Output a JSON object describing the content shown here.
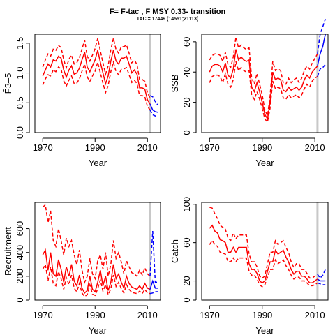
{
  "title": "F= F-tac , F MSY 0.33- transition",
  "subtitle": "TAC = 17449 (14551;21113)",
  "colors": {
    "hist": "#ff0000",
    "proj": "#0000ff",
    "vline": "#c8c8c8",
    "axis": "#000000"
  },
  "chart_data": [
    {
      "type": "line",
      "xlabel": "Year",
      "ylabel": "F̄3–5",
      "xlim": [
        1967,
        2015
      ],
      "ylim": [
        0,
        1.65
      ],
      "xticks": [
        1970,
        1990,
        2010
      ],
      "yticks": [
        0.0,
        0.5,
        1.0,
        1.5
      ],
      "ytick_labels": [
        "0.0",
        "0.5",
        "1.0",
        "1.5"
      ],
      "vline_x": 2011,
      "historical": {
        "x": [
          1970,
          1971,
          1972,
          1973,
          1974,
          1975,
          1976,
          1977,
          1978,
          1979,
          1980,
          1981,
          1982,
          1983,
          1984,
          1985,
          1986,
          1987,
          1988,
          1989,
          1990,
          1991,
          1992,
          1993,
          1994,
          1995,
          1996,
          1997,
          1998,
          1999,
          2000,
          2001,
          2002,
          2003,
          2004,
          2005,
          2006,
          2007,
          2008,
          2009,
          2010,
          2011
        ],
        "median": [
          0.95,
          1.05,
          1.15,
          1.1,
          1.22,
          1.2,
          1.28,
          1.25,
          1.05,
          0.93,
          1.05,
          1.12,
          0.98,
          1.0,
          1.08,
          1.22,
          1.35,
          1.1,
          1.02,
          1.12,
          1.22,
          1.38,
          1.18,
          1.0,
          0.82,
          0.95,
          1.2,
          1.38,
          1.2,
          1.15,
          1.25,
          1.25,
          1.28,
          1.15,
          1.0,
          1.05,
          0.98,
          0.75,
          0.75,
          0.73,
          0.55,
          0.48
        ],
        "lower": [
          0.8,
          0.9,
          0.97,
          0.95,
          1.05,
          1.02,
          1.1,
          1.07,
          0.87,
          0.78,
          0.88,
          0.95,
          0.82,
          0.83,
          0.9,
          1.03,
          1.15,
          0.93,
          0.86,
          0.95,
          1.03,
          1.18,
          1.0,
          0.83,
          0.67,
          0.79,
          1.02,
          1.18,
          1.02,
          0.97,
          1.06,
          1.07,
          1.09,
          0.97,
          0.84,
          0.88,
          0.82,
          0.62,
          0.62,
          0.6,
          0.44,
          0.38
        ],
        "upper": [
          1.1,
          1.22,
          1.32,
          1.28,
          1.4,
          1.38,
          1.46,
          1.43,
          1.22,
          1.09,
          1.23,
          1.3,
          1.15,
          1.17,
          1.26,
          1.4,
          1.55,
          1.28,
          1.2,
          1.3,
          1.41,
          1.58,
          1.37,
          1.17,
          0.98,
          1.12,
          1.39,
          1.58,
          1.39,
          1.33,
          1.44,
          1.44,
          1.47,
          1.33,
          1.17,
          1.22,
          1.14,
          0.89,
          0.89,
          0.86,
          0.67,
          0.58
        ]
      },
      "projection": {
        "x": [
          2011,
          2012,
          2013,
          2014
        ],
        "median": [
          0.48,
          0.38,
          0.35,
          0.34
        ],
        "lower": [
          0.38,
          0.3,
          0.28,
          0.27
        ],
        "upper": [
          0.62,
          0.6,
          0.52,
          0.46
        ]
      }
    },
    {
      "type": "line",
      "xlabel": "Year",
      "ylabel": "SSB",
      "xlim": [
        1967,
        2015
      ],
      "ylim": [
        0,
        65
      ],
      "xticks": [
        1970,
        1990,
        2010
      ],
      "yticks": [
        0,
        20,
        40,
        60
      ],
      "ytick_labels": [
        "0",
        "20",
        "40",
        "60"
      ],
      "vline_x": 2011,
      "historical": {
        "x": [
          1970,
          1971,
          1972,
          1973,
          1974,
          1975,
          1976,
          1977,
          1978,
          1979,
          1980,
          1981,
          1982,
          1983,
          1984,
          1985,
          1986,
          1987,
          1988,
          1989,
          1990,
          1991,
          1992,
          1993,
          1994,
          1995,
          1996,
          1997,
          1998,
          1999,
          2000,
          2001,
          2002,
          2003,
          2004,
          2005,
          2006,
          2007,
          2008,
          2009,
          2010,
          2011
        ],
        "median": [
          40,
          44,
          45,
          45,
          44,
          40,
          46,
          38,
          36,
          42,
          55,
          48,
          50,
          48,
          47,
          48,
          30,
          27,
          33,
          27,
          20,
          12,
          9,
          20,
          40,
          35,
          36,
          35,
          28,
          27,
          30,
          28,
          29,
          30,
          28,
          30,
          35,
          38,
          36,
          40,
          42,
          44
        ],
        "lower": [
          33,
          37,
          38,
          38,
          37,
          33,
          39,
          32,
          30,
          35,
          47,
          41,
          43,
          41,
          40,
          41,
          25,
          22,
          27,
          22,
          16,
          9,
          7,
          16,
          34,
          29,
          30,
          29,
          23,
          22,
          25,
          23,
          24,
          25,
          23,
          25,
          29,
          32,
          30,
          34,
          36,
          37
        ],
        "upper": [
          48,
          51,
          52,
          52,
          51,
          47,
          53,
          45,
          43,
          50,
          63,
          56,
          58,
          56,
          55,
          56,
          36,
          32,
          39,
          32,
          25,
          15,
          11,
          24,
          47,
          41,
          42,
          41,
          33,
          32,
          36,
          33,
          35,
          36,
          33,
          36,
          41,
          44,
          42,
          46,
          49,
          52
        ]
      },
      "projection": {
        "x": [
          2011,
          2012,
          2013,
          2014
        ],
        "median": [
          44,
          52,
          57,
          65
        ],
        "lower": [
          37,
          42,
          43,
          45
        ],
        "upper": [
          52,
          65,
          70,
          75
        ]
      }
    },
    {
      "type": "line",
      "xlabel": "Year",
      "ylabel": "Recruitment",
      "xlim": [
        1967,
        2015
      ],
      "ylim": [
        0,
        820
      ],
      "xticks": [
        1970,
        1990,
        2010
      ],
      "yticks": [
        0,
        200,
        400,
        600
      ],
      "ytick_labels": [
        "0",
        "200",
        "400",
        "600"
      ],
      "vline_x": 2011,
      "historical": {
        "x": [
          1970,
          1971,
          1972,
          1973,
          1974,
          1975,
          1976,
          1977,
          1978,
          1979,
          1980,
          1981,
          1982,
          1983,
          1984,
          1985,
          1986,
          1987,
          1988,
          1989,
          1990,
          1991,
          1992,
          1993,
          1994,
          1995,
          1996,
          1997,
          1998,
          1999,
          2000,
          2001,
          2002,
          2003,
          2004,
          2005,
          2006,
          2007,
          2008,
          2009,
          2010,
          2011
        ],
        "median": [
          380,
          420,
          250,
          400,
          220,
          200,
          340,
          260,
          150,
          280,
          200,
          300,
          160,
          120,
          210,
          100,
          60,
          80,
          200,
          90,
          70,
          150,
          250,
          120,
          200,
          80,
          150,
          300,
          180,
          220,
          150,
          100,
          200,
          140,
          110,
          100,
          90,
          120,
          90,
          140,
          100,
          90
        ],
        "lower": [
          260,
          300,
          160,
          280,
          140,
          120,
          240,
          180,
          90,
          190,
          130,
          210,
          100,
          70,
          140,
          60,
          30,
          45,
          130,
          50,
          40,
          95,
          170,
          75,
          130,
          45,
          95,
          210,
          115,
          150,
          95,
          60,
          130,
          90,
          65,
          60,
          55,
          75,
          55,
          90,
          60,
          55
        ],
        "upper": [
          780,
          800,
          650,
          750,
          500,
          450,
          600,
          500,
          380,
          520,
          450,
          500,
          380,
          300,
          420,
          250,
          150,
          200,
          350,
          220,
          180,
          330,
          380,
          260,
          400,
          200,
          300,
          500,
          350,
          400,
          320,
          220,
          330,
          280,
          230,
          220,
          200,
          250,
          210,
          270,
          220,
          200
        ]
      },
      "projection": {
        "x": [
          2011,
          2012,
          2013,
          2014
        ],
        "median": [
          90,
          160,
          100,
          100
        ],
        "lower": [
          55,
          60,
          70,
          70
        ],
        "upper": [
          200,
          580,
          150,
          150
        ]
      }
    },
    {
      "type": "line",
      "xlabel": "Year",
      "ylabel": "Catch",
      "xlim": [
        1967,
        2015
      ],
      "ylim": [
        0,
        102
      ],
      "xticks": [
        1970,
        1990,
        2010
      ],
      "yticks": [
        0,
        20,
        60,
        100
      ],
      "ytick_labels": [
        "0",
        "20",
        "60",
        "100"
      ],
      "vline_x": 2011,
      "historical": {
        "x": [
          1970,
          1971,
          1972,
          1973,
          1974,
          1975,
          1976,
          1977,
          1978,
          1979,
          1980,
          1981,
          1982,
          1983,
          1984,
          1985,
          1986,
          1987,
          1988,
          1989,
          1990,
          1991,
          1992,
          1993,
          1994,
          1995,
          1996,
          1997,
          1998,
          1999,
          2000,
          2001,
          2002,
          2003,
          2004,
          2005,
          2006,
          2007,
          2008,
          2009,
          2010,
          2011
        ],
        "median": [
          75,
          78,
          72,
          70,
          63,
          62,
          60,
          50,
          50,
          55,
          50,
          55,
          55,
          55,
          55,
          38,
          32,
          32,
          28,
          20,
          18,
          20,
          30,
          40,
          40,
          52,
          48,
          50,
          52,
          45,
          40,
          32,
          27,
          30,
          30,
          25,
          25,
          22,
          18,
          18,
          20,
          22
        ],
        "lower": [
          58,
          62,
          58,
          56,
          50,
          49,
          48,
          40,
          40,
          44,
          40,
          44,
          44,
          44,
          44,
          30,
          26,
          26,
          22,
          16,
          14,
          16,
          24,
          32,
          32,
          42,
          38,
          40,
          42,
          36,
          32,
          26,
          22,
          24,
          24,
          20,
          20,
          18,
          15,
          15,
          16,
          18
        ],
        "upper": [
          97,
          96,
          90,
          85,
          78,
          76,
          74,
          65,
          62,
          70,
          64,
          68,
          68,
          68,
          68,
          48,
          40,
          40,
          35,
          25,
          23,
          25,
          38,
          50,
          50,
          62,
          58,
          60,
          62,
          55,
          50,
          40,
          34,
          38,
          38,
          32,
          32,
          28,
          23,
          23,
          25,
          27
        ]
      },
      "projection": {
        "x": [
          2011,
          2012,
          2013,
          2014
        ],
        "median": [
          22,
          20,
          20,
          20
        ],
        "lower": [
          18,
          17,
          16,
          16
        ],
        "upper": [
          27,
          23,
          26,
          32
        ]
      }
    }
  ]
}
